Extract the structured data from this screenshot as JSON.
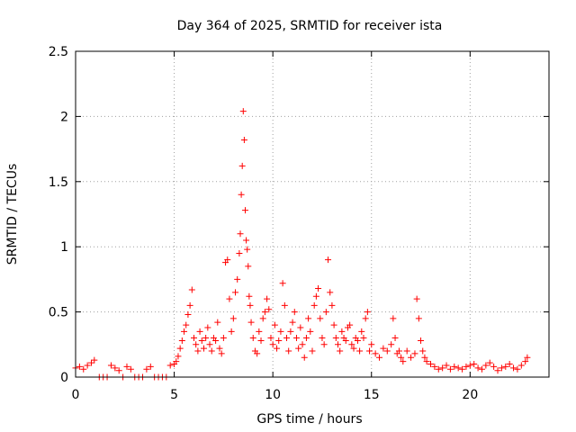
{
  "chart_data": {
    "type": "scatter",
    "title": "Day 364 of 2025, SRMTID for receiver ista",
    "xlabel": "GPS time / hours",
    "ylabel": "SRMTID / TECUs",
    "xlim": [
      0,
      24
    ],
    "ylim": [
      0,
      2.5
    ],
    "xticks": [
      0,
      5,
      10,
      15,
      20
    ],
    "yticks": [
      0,
      0.5,
      1,
      1.5,
      2,
      2.5
    ],
    "xtick_labels": [
      "0",
      "5",
      "10",
      "15",
      "20"
    ],
    "ytick_labels": [
      "0",
      "0.5",
      "1",
      "1.5",
      "2",
      "2.5"
    ],
    "grid": true,
    "marker": "+",
    "color": "#ff0000",
    "series": [
      {
        "name": "SRMTID",
        "x": [
          0.0,
          0.2,
          0.4,
          0.6,
          0.8,
          0.95,
          1.2,
          1.4,
          1.6,
          1.8,
          2.0,
          2.2,
          2.4,
          2.6,
          2.8,
          3.0,
          3.2,
          3.4,
          3.6,
          3.8,
          4.0,
          4.2,
          4.4,
          4.6,
          4.8,
          5.0,
          5.1,
          5.2,
          5.3,
          5.4,
          5.5,
          5.6,
          5.7,
          5.8,
          5.9,
          6.0,
          6.1,
          6.2,
          6.3,
          6.4,
          6.5,
          6.6,
          6.7,
          6.8,
          6.9,
          7.0,
          7.1,
          7.2,
          7.3,
          7.4,
          7.5,
          7.6,
          7.7,
          7.8,
          7.9,
          8.0,
          8.1,
          8.2,
          8.3,
          8.35,
          8.4,
          8.45,
          8.5,
          8.55,
          8.6,
          8.65,
          8.7,
          8.75,
          8.8,
          8.85,
          8.9,
          9.0,
          9.1,
          9.2,
          9.3,
          9.4,
          9.5,
          9.6,
          9.7,
          9.8,
          9.9,
          10.0,
          10.1,
          10.2,
          10.3,
          10.4,
          10.5,
          10.6,
          10.7,
          10.8,
          10.9,
          11.0,
          11.1,
          11.2,
          11.3,
          11.4,
          11.5,
          11.6,
          11.7,
          11.8,
          11.9,
          12.0,
          12.1,
          12.2,
          12.3,
          12.4,
          12.5,
          12.6,
          12.7,
          12.8,
          12.9,
          13.0,
          13.1,
          13.2,
          13.3,
          13.4,
          13.5,
          13.6,
          13.7,
          13.8,
          13.9,
          14.0,
          14.1,
          14.2,
          14.3,
          14.4,
          14.5,
          14.6,
          14.7,
          14.8,
          14.9,
          15.0,
          15.2,
          15.4,
          15.6,
          15.8,
          16.0,
          16.1,
          16.2,
          16.3,
          16.4,
          16.5,
          16.6,
          16.8,
          17.0,
          17.2,
          17.3,
          17.4,
          17.5,
          17.6,
          17.7,
          17.8,
          18.0,
          18.2,
          18.4,
          18.6,
          18.8,
          19.0,
          19.2,
          19.4,
          19.6,
          19.8,
          20.0,
          20.2,
          20.4,
          20.6,
          20.8,
          21.0,
          21.2,
          21.4,
          21.6,
          21.8,
          22.0,
          22.2,
          22.4,
          22.6,
          22.8,
          22.9
        ],
        "y": [
          0.07,
          0.08,
          0.06,
          0.09,
          0.11,
          0.13,
          0.0,
          0.0,
          0.0,
          0.09,
          0.07,
          0.05,
          0.0,
          0.08,
          0.06,
          0.0,
          0.0,
          0.0,
          0.06,
          0.08,
          0.0,
          0.0,
          0.0,
          0.0,
          0.09,
          0.1,
          0.12,
          0.16,
          0.22,
          0.28,
          0.35,
          0.4,
          0.48,
          0.55,
          0.67,
          0.3,
          0.25,
          0.2,
          0.35,
          0.28,
          0.22,
          0.3,
          0.38,
          0.25,
          0.2,
          0.3,
          0.28,
          0.42,
          0.22,
          0.18,
          0.3,
          0.88,
          0.9,
          0.6,
          0.35,
          0.45,
          0.65,
          0.75,
          0.95,
          1.1,
          1.4,
          1.62,
          2.04,
          1.82,
          1.28,
          1.05,
          0.98,
          0.85,
          0.62,
          0.55,
          0.42,
          0.3,
          0.2,
          0.18,
          0.35,
          0.28,
          0.45,
          0.5,
          0.6,
          0.52,
          0.3,
          0.25,
          0.4,
          0.22,
          0.28,
          0.35,
          0.72,
          0.55,
          0.3,
          0.2,
          0.35,
          0.42,
          0.5,
          0.3,
          0.22,
          0.38,
          0.25,
          0.15,
          0.3,
          0.45,
          0.35,
          0.2,
          0.55,
          0.62,
          0.68,
          0.45,
          0.3,
          0.25,
          0.5,
          0.9,
          0.65,
          0.55,
          0.4,
          0.3,
          0.25,
          0.2,
          0.35,
          0.3,
          0.28,
          0.38,
          0.4,
          0.25,
          0.22,
          0.3,
          0.28,
          0.2,
          0.35,
          0.3,
          0.45,
          0.5,
          0.2,
          0.25,
          0.18,
          0.15,
          0.22,
          0.2,
          0.25,
          0.45,
          0.3,
          0.18,
          0.2,
          0.15,
          0.12,
          0.2,
          0.15,
          0.18,
          0.6,
          0.45,
          0.28,
          0.2,
          0.15,
          0.12,
          0.1,
          0.08,
          0.06,
          0.07,
          0.09,
          0.06,
          0.08,
          0.07,
          0.06,
          0.08,
          0.09,
          0.1,
          0.07,
          0.06,
          0.09,
          0.11,
          0.08,
          0.05,
          0.07,
          0.08,
          0.1,
          0.07,
          0.06,
          0.09,
          0.12,
          0.15
        ]
      }
    ]
  }
}
